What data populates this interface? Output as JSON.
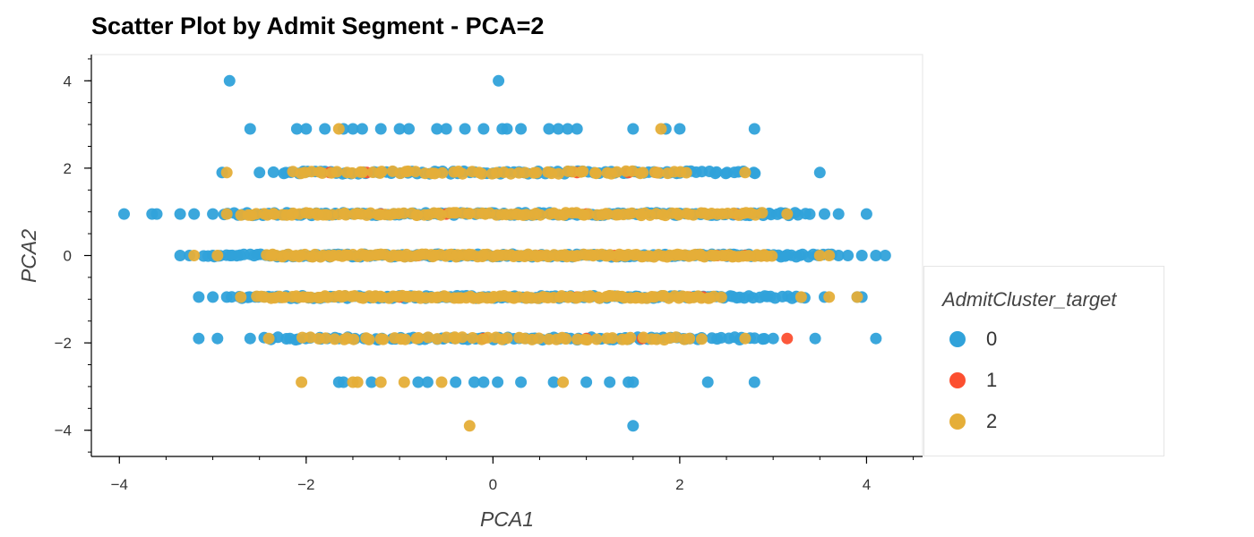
{
  "chart_data": {
    "type": "scatter",
    "title": "Scatter Plot by Admit Segment - PCA=2",
    "xlabel": "PCA1",
    "ylabel": "PCA2",
    "xlim": [
      -4.3,
      4.6
    ],
    "ylim": [
      -4.6,
      4.6
    ],
    "x_ticks": [
      -4,
      -2,
      0,
      2,
      4
    ],
    "y_ticks": [
      4,
      2,
      0,
      -2,
      -4
    ],
    "x_tick_labels": [
      "−4",
      "−2",
      "0",
      "2",
      "4"
    ],
    "y_tick_labels": [
      "4",
      "2",
      "0",
      "−2",
      "−4"
    ],
    "grid": false,
    "legend_position": "right",
    "legend_title": "AdmitCluster_target",
    "series": [
      {
        "name": "0",
        "color": "#30a2da",
        "bands": [
          {
            "y": 4,
            "x": [
              -2.82,
              0.06
            ]
          },
          {
            "y": 2.9,
            "x": [
              -2.6,
              -2.1,
              -2.0,
              -1.8,
              -1.6,
              -1.5,
              -1.4,
              -1.2,
              -1.0,
              -0.9,
              -0.6,
              -0.5,
              -0.3,
              -0.1,
              0.1,
              0.15,
              0.3,
              0.6,
              0.7,
              0.8,
              0.9,
              1.5,
              1.85,
              2.0,
              2.8
            ]
          },
          {
            "y": 1.9,
            "x": [
              -2.9,
              -2.5,
              3.5
            ]
          },
          {
            "y": 1.9,
            "range": [
              -2.35,
              2.85
            ],
            "n": 90
          },
          {
            "y": 0.95,
            "x": [
              -3.95,
              -3.65,
              -3.6,
              -3.35,
              -3.2,
              -3.0,
              3.55,
              3.7,
              4.0
            ]
          },
          {
            "y": 0.95,
            "range": [
              -2.9,
              3.4
            ],
            "n": 130
          },
          {
            "y": 0,
            "x": [
              -3.35,
              -3.25,
              -3.0,
              3.7,
              3.8,
              3.95,
              4.1,
              4.2
            ]
          },
          {
            "y": 0,
            "range": [
              -3.1,
              3.65
            ],
            "n": 160
          },
          {
            "y": -0.95,
            "x": [
              -3.15,
              -3.0,
              -2.85,
              3.55,
              3.9,
              3.95
            ]
          },
          {
            "y": -0.95,
            "range": [
              -2.8,
              3.35
            ],
            "n": 130
          },
          {
            "y": -1.9,
            "x": [
              -3.15,
              -2.95,
              -2.6,
              3.0,
              3.45,
              4.1
            ]
          },
          {
            "y": -1.9,
            "range": [
              -2.45,
              2.95
            ],
            "n": 90
          },
          {
            "y": -2.9,
            "x": [
              -1.65,
              -1.6,
              -1.3,
              -0.8,
              -0.7,
              -0.4,
              -0.2,
              -0.1,
              0.05,
              0.3,
              0.65,
              1.0,
              1.25,
              1.45,
              1.5,
              2.3,
              2.8
            ]
          },
          {
            "y": -3.9,
            "x": [
              1.5
            ]
          }
        ]
      },
      {
        "name": "1",
        "color": "#fc4f30",
        "bands": [
          {
            "y": 1.9,
            "x": [
              -1.75,
              -1.35,
              0.9,
              1.45,
              1.75
            ]
          },
          {
            "y": 0.95,
            "x": [
              -1.2,
              -0.5,
              1.0,
              2.6
            ]
          },
          {
            "y": 0,
            "x": [
              -0.8,
              0.5,
              1.3,
              2.4,
              2.5,
              2.7,
              2.9
            ]
          },
          {
            "y": -0.95,
            "x": [
              -1.0,
              0.9,
              2.1,
              2.25
            ]
          },
          {
            "y": -1.9,
            "x": [
              -0.1,
              1.0,
              1.6,
              3.15
            ]
          }
        ]
      },
      {
        "name": "2",
        "color": "#e5ae38",
        "bands": [
          {
            "y": 2.9,
            "x": [
              -1.65,
              1.8
            ]
          },
          {
            "y": 1.9,
            "x": [
              -2.85,
              2.7
            ]
          },
          {
            "y": 1.9,
            "range": [
              -2.2,
              2.1
            ],
            "n": 60
          },
          {
            "y": 0.95,
            "x": [
              -2.85,
              3.15
            ]
          },
          {
            "y": 0.95,
            "range": [
              -2.7,
              2.9
            ],
            "n": 110
          },
          {
            "y": 0,
            "x": [
              -3.2,
              -2.95,
              3.5,
              3.6
            ]
          },
          {
            "y": 0,
            "range": [
              -2.45,
              3.0
            ],
            "n": 140
          },
          {
            "y": -0.95,
            "x": [
              -2.7,
              3.3,
              3.6,
              3.9
            ]
          },
          {
            "y": -0.95,
            "range": [
              -2.55,
              2.45
            ],
            "n": 110
          },
          {
            "y": -1.9,
            "x": [
              -2.4,
              2.7
            ]
          },
          {
            "y": -1.9,
            "range": [
              -2.05,
              2.25
            ],
            "n": 55
          },
          {
            "y": -2.9,
            "x": [
              -2.05,
              -1.5,
              -1.45,
              -1.2,
              -0.95,
              -0.55,
              0.75
            ]
          },
          {
            "y": -3.9,
            "x": [
              -0.25
            ]
          }
        ]
      }
    ]
  }
}
